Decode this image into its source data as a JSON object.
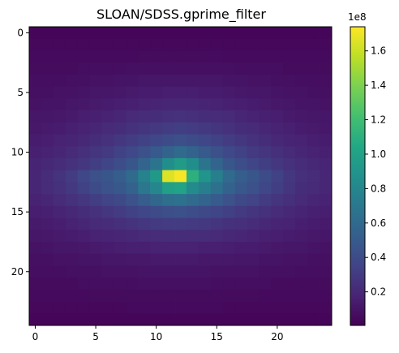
{
  "chart_data": {
    "type": "heatmap",
    "title": "SLOAN/SDSS.gprime_filter",
    "xlabel": "",
    "ylabel": "",
    "rows": 25,
    "cols": 25,
    "x_ticks": [
      0,
      5,
      10,
      15,
      20
    ],
    "y_ticks": [
      0,
      5,
      10,
      15,
      20
    ],
    "y_axis_direction": "top-to-bottom",
    "colormap": "viridis",
    "colorbar": {
      "min": 500000,
      "max": 174000000,
      "ticks": [
        0.2,
        0.4,
        0.6,
        0.8,
        1.0,
        1.2,
        1.4,
        1.6
      ],
      "tick_labels": [
        "0.2",
        "0.4",
        "0.6",
        "0.8",
        "1.0",
        "1.2",
        "1.4",
        "1.6"
      ],
      "multiplier_label": "1e8",
      "scale": 100000000,
      "placement": "right"
    },
    "values": [
      [
        3000000,
        3000000,
        3000000,
        3000000,
        3000000,
        3000000,
        3000000,
        3000000,
        3000000,
        3000000,
        3000000,
        3000000,
        3000000,
        3000000,
        3000000,
        3000000,
        3000000,
        3000000,
        3000000,
        3000000,
        3000000,
        3000000,
        3000000,
        3000000,
        3000000
      ],
      [
        4000000,
        4000000,
        4000000,
        4000000,
        4000000,
        4000000,
        4000000,
        4000000,
        4000000,
        4000000,
        4000000,
        4000000,
        4000000,
        4000000,
        4000000,
        4000000,
        4000000,
        4000000,
        4000000,
        4000000,
        4000000,
        4000000,
        4000000,
        4000000,
        4000000
      ],
      [
        5000000,
        5000000,
        5000000,
        5000000,
        5000000,
        5000000,
        5000000,
        5000000,
        5000000,
        6000000,
        6000000,
        6000000,
        6000000,
        6000000,
        6000000,
        6000000,
        5000000,
        5000000,
        5000000,
        5000000,
        5000000,
        5000000,
        5000000,
        5000000,
        5000000
      ],
      [
        6000000,
        6000000,
        6000000,
        6000000,
        7000000,
        7000000,
        7000000,
        7000000,
        8000000,
        8000000,
        8000000,
        8000000,
        8000000,
        8000000,
        8000000,
        8000000,
        8000000,
        7000000,
        7000000,
        7000000,
        7000000,
        6000000,
        6000000,
        6000000,
        6000000
      ],
      [
        7000000,
        7000000,
        7000000,
        8000000,
        8000000,
        9000000,
        9000000,
        10000000,
        10000000,
        11000000,
        11000000,
        11000000,
        11000000,
        11000000,
        11000000,
        11000000,
        10000000,
        10000000,
        9000000,
        9000000,
        8000000,
        8000000,
        7000000,
        7000000,
        7000000
      ],
      [
        8000000,
        8000000,
        9000000,
        9000000,
        10000000,
        11000000,
        11000000,
        12000000,
        13000000,
        14000000,
        14000000,
        15000000,
        15000000,
        15000000,
        14000000,
        14000000,
        13000000,
        12000000,
        11000000,
        11000000,
        10000000,
        9000000,
        9000000,
        8000000,
        8000000
      ],
      [
        9000000,
        10000000,
        10000000,
        11000000,
        12000000,
        13000000,
        14000000,
        15000000,
        16000000,
        17000000,
        18000000,
        19000000,
        19000000,
        19000000,
        18000000,
        17000000,
        16000000,
        15000000,
        14000000,
        13000000,
        12000000,
        11000000,
        10000000,
        10000000,
        9000000
      ],
      [
        11000000,
        11000000,
        12000000,
        13000000,
        15000000,
        16000000,
        17000000,
        19000000,
        21000000,
        22000000,
        23000000,
        24000000,
        25000000,
        24000000,
        23000000,
        22000000,
        21000000,
        19000000,
        17000000,
        16000000,
        15000000,
        13000000,
        12000000,
        11000000,
        11000000
      ],
      [
        12000000,
        13000000,
        14000000,
        16000000,
        17000000,
        19000000,
        21000000,
        23000000,
        25000000,
        27000000,
        29000000,
        31000000,
        32000000,
        31000000,
        29000000,
        27000000,
        25000000,
        23000000,
        21000000,
        19000000,
        17000000,
        16000000,
        14000000,
        13000000,
        12000000
      ],
      [
        14000000,
        15000000,
        17000000,
        18000000,
        20000000,
        23000000,
        25000000,
        28000000,
        31000000,
        34000000,
        37000000,
        40000000,
        42000000,
        40000000,
        37000000,
        34000000,
        31000000,
        28000000,
        25000000,
        23000000,
        20000000,
        18000000,
        17000000,
        15000000,
        14000000
      ],
      [
        16000000,
        17000000,
        19000000,
        21000000,
        24000000,
        27000000,
        30000000,
        34000000,
        38000000,
        43000000,
        49000000,
        55000000,
        60000000,
        55000000,
        49000000,
        43000000,
        38000000,
        34000000,
        30000000,
        27000000,
        24000000,
        21000000,
        19000000,
        17000000,
        16000000
      ],
      [
        18000000,
        20000000,
        22000000,
        25000000,
        28000000,
        32000000,
        36000000,
        41000000,
        47000000,
        56000000,
        67000000,
        85000000,
        95000000,
        85000000,
        67000000,
        56000000,
        47000000,
        41000000,
        36000000,
        32000000,
        28000000,
        25000000,
        22000000,
        20000000,
        18000000
      ],
      [
        19000000,
        22000000,
        26000000,
        31000000,
        37000000,
        43000000,
        47000000,
        52000000,
        60000000,
        77000000,
        93000000,
        165000000,
        172000000,
        110000000,
        90000000,
        75000000,
        60000000,
        52000000,
        47000000,
        40000000,
        34000000,
        28000000,
        24000000,
        22000000,
        19000000
      ],
      [
        19000000,
        22000000,
        25000000,
        29000000,
        34000000,
        40000000,
        44000000,
        48000000,
        55000000,
        69000000,
        80000000,
        98000000,
        100000000,
        83000000,
        75000000,
        65000000,
        55000000,
        48000000,
        43000000,
        37000000,
        32000000,
        27000000,
        23000000,
        21000000,
        19000000
      ],
      [
        17000000,
        19000000,
        22000000,
        25000000,
        28000000,
        32000000,
        35000000,
        39000000,
        44000000,
        51000000,
        58000000,
        64000000,
        66000000,
        61000000,
        56000000,
        50000000,
        44000000,
        39000000,
        35000000,
        31000000,
        27000000,
        24000000,
        21000000,
        19000000,
        17000000
      ],
      [
        15000000,
        16000000,
        18000000,
        20000000,
        23000000,
        25000000,
        28000000,
        31000000,
        34000000,
        37000000,
        40000000,
        42000000,
        43000000,
        41000000,
        39000000,
        36000000,
        33000000,
        30000000,
        27000000,
        25000000,
        22000000,
        20000000,
        18000000,
        16000000,
        15000000
      ],
      [
        13000000,
        14000000,
        15000000,
        17000000,
        19000000,
        21000000,
        22000000,
        24000000,
        26000000,
        28000000,
        30000000,
        31000000,
        31000000,
        30000000,
        29000000,
        27000000,
        25000000,
        24000000,
        22000000,
        20000000,
        18000000,
        17000000,
        15000000,
        14000000,
        13000000
      ],
      [
        11000000,
        12000000,
        13000000,
        14000000,
        15000000,
        17000000,
        18000000,
        19000000,
        20000000,
        21000000,
        22000000,
        23000000,
        23000000,
        22000000,
        22000000,
        21000000,
        20000000,
        19000000,
        17000000,
        16000000,
        15000000,
        14000000,
        13000000,
        12000000,
        11000000
      ],
      [
        9000000,
        10000000,
        11000000,
        11000000,
        12000000,
        13000000,
        14000000,
        15000000,
        16000000,
        16000000,
        17000000,
        17000000,
        17000000,
        17000000,
        16000000,
        16000000,
        15000000,
        14000000,
        14000000,
        13000000,
        12000000,
        11000000,
        11000000,
        10000000,
        9000000
      ],
      [
        8000000,
        8000000,
        9000000,
        9000000,
        10000000,
        10000000,
        11000000,
        11000000,
        12000000,
        12000000,
        13000000,
        13000000,
        13000000,
        13000000,
        12000000,
        12000000,
        12000000,
        11000000,
        11000000,
        10000000,
        10000000,
        9000000,
        9000000,
        8000000,
        8000000
      ],
      [
        7000000,
        7000000,
        7000000,
        8000000,
        8000000,
        8000000,
        9000000,
        9000000,
        9000000,
        10000000,
        10000000,
        10000000,
        10000000,
        10000000,
        10000000,
        9000000,
        9000000,
        9000000,
        9000000,
        8000000,
        8000000,
        8000000,
        7000000,
        7000000,
        7000000
      ],
      [
        6000000,
        6000000,
        6000000,
        6000000,
        7000000,
        7000000,
        7000000,
        7000000,
        7000000,
        8000000,
        8000000,
        8000000,
        8000000,
        8000000,
        8000000,
        7000000,
        7000000,
        7000000,
        7000000,
        7000000,
        6000000,
        6000000,
        6000000,
        6000000,
        6000000
      ],
      [
        5000000,
        5000000,
        5000000,
        5000000,
        5000000,
        6000000,
        6000000,
        6000000,
        6000000,
        6000000,
        6000000,
        6000000,
        6000000,
        6000000,
        6000000,
        6000000,
        6000000,
        6000000,
        6000000,
        5000000,
        5000000,
        5000000,
        5000000,
        5000000,
        5000000
      ],
      [
        4000000,
        4000000,
        4000000,
        4000000,
        4000000,
        4000000,
        4000000,
        4000000,
        5000000,
        5000000,
        5000000,
        5000000,
        5000000,
        5000000,
        5000000,
        5000000,
        4000000,
        4000000,
        4000000,
        4000000,
        4000000,
        4000000,
        4000000,
        4000000,
        4000000
      ],
      [
        3000000,
        3000000,
        3000000,
        3000000,
        3000000,
        3000000,
        3000000,
        3000000,
        3000000,
        3000000,
        3000000,
        3000000,
        3000000,
        3000000,
        3000000,
        3000000,
        3000000,
        3000000,
        3000000,
        3000000,
        3000000,
        3000000,
        3000000,
        3000000,
        3000000
      ]
    ]
  }
}
